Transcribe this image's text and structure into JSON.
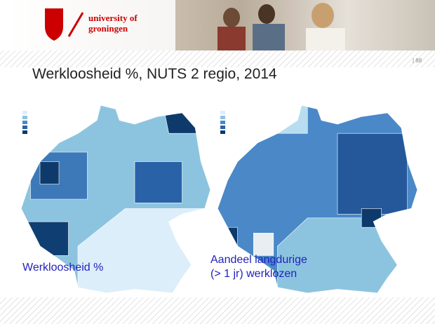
{
  "header": {
    "logo_line1": "university of",
    "logo_line2": "groningen"
  },
  "slide_number": "| 88",
  "title": "Werkloosheid %, NUTS 2 regio, 2014",
  "maps": [
    {
      "label_lines": [
        "Werkloosheid %"
      ]
    },
    {
      "label_lines": [
        "Aandeel langdurige",
        "(> 1 jr) werklozen"
      ]
    }
  ]
}
